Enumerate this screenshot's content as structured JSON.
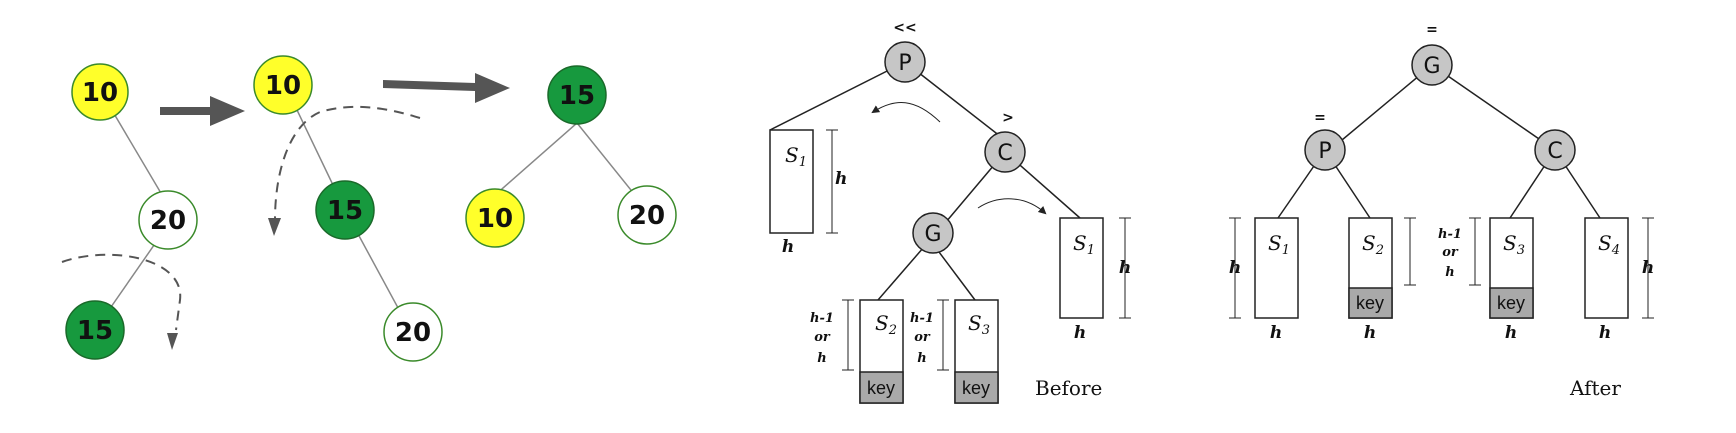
{
  "colors": {
    "yellow_node": "#ffff2a",
    "green_node": "#17993e",
    "white_node": "#ffffff",
    "green_outline": "#3a8a2a",
    "gray_node": "#c6c6c6",
    "arrow": "#555555",
    "key_box": "#a9a9a9"
  },
  "left_panel": {
    "stage1": {
      "n10": "10",
      "n20": "20",
      "n15": "15"
    },
    "stage2": {
      "n10": "10",
      "n15": "15",
      "n20": "20"
    },
    "stage3": {
      "n15": "15",
      "n10": "10",
      "n20": "20"
    }
  },
  "before": {
    "caption": "Before",
    "P": "P",
    "C": "C",
    "G": "G",
    "bal_P": "<<",
    "bal_C": ">",
    "S1_left": "S",
    "S1_left_sub": "1",
    "S1_right": "S",
    "S1_right_sub": "1",
    "S2": "S",
    "S2_sub": "2",
    "S3": "S",
    "S3_sub": "3",
    "key": "key",
    "h": "h",
    "hm1": "h-1",
    "or": "or"
  },
  "after": {
    "caption": "After",
    "G": "G",
    "P": "P",
    "C": "C",
    "bal_G": "=",
    "bal_P": "=",
    "S1": "S",
    "S1_sub": "1",
    "S2": "S",
    "S2_sub": "2",
    "S3": "S",
    "S3_sub": "3",
    "S4": "S",
    "S4_sub": "4",
    "key": "key",
    "h": "h",
    "hm1": "h-1",
    "or": "or"
  }
}
